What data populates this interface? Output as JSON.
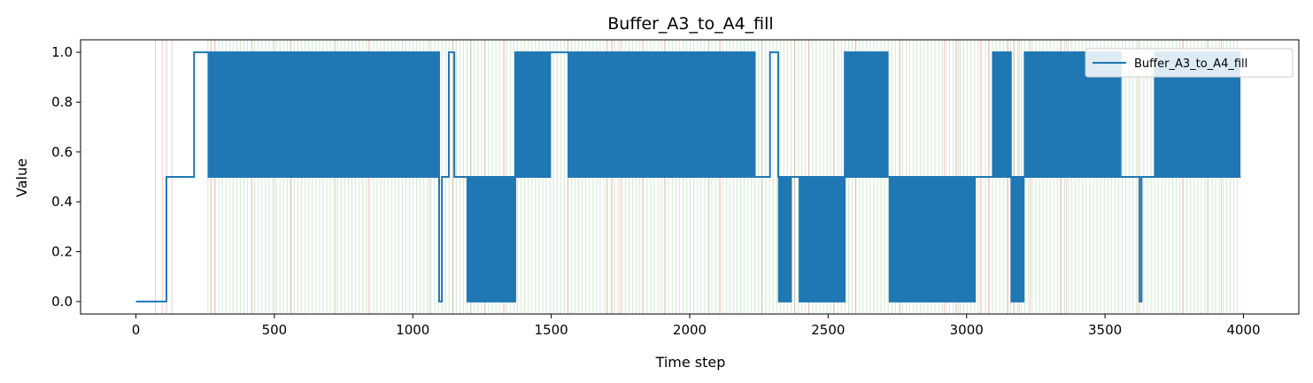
{
  "chart_data": {
    "type": "line",
    "title": "Buffer_A3_to_A4_fill",
    "xlabel": "Time step",
    "ylabel": "Value",
    "xlim": [
      -200,
      4200
    ],
    "ylim": [
      -0.05,
      1.05
    ],
    "x_ticks": [
      0,
      500,
      1000,
      1500,
      2000,
      2500,
      3000,
      3500,
      4000
    ],
    "y_ticks": [
      0.0,
      0.2,
      0.4,
      0.6,
      0.8,
      1.0
    ],
    "x_tick_labels": [
      "0",
      "500",
      "1000",
      "1500",
      "2000",
      "2500",
      "3000",
      "3500",
      "4000"
    ],
    "y_tick_labels": [
      "0.0",
      "0.2",
      "0.4",
      "0.6",
      "0.8",
      "1.0"
    ],
    "grid": false,
    "legend_position": "top-right",
    "series": [
      {
        "name": "Buffer_A3_to_A4_fill",
        "color": "#1f77b4",
        "step": true,
        "segments": [
          {
            "x": [
              0,
              110
            ],
            "y": 0.0
          },
          {
            "x": [
              110,
              210
            ],
            "y": 0.5
          },
          {
            "x": [
              210,
              260
            ],
            "y": 1.0
          },
          {
            "x": [
              260,
              1095
            ],
            "y": "oscillate",
            "levels": [
              0.5,
              1.0
            ]
          },
          {
            "x": [
              1095,
              1105
            ],
            "y": 0.0
          },
          {
            "x": [
              1105,
              1130
            ],
            "y": 0.5
          },
          {
            "x": [
              1130,
              1150
            ],
            "y": 1.0
          },
          {
            "x": [
              1150,
              1195
            ],
            "y": 0.5
          },
          {
            "x": [
              1195,
              1370
            ],
            "y": "oscillate",
            "levels": [
              0.0,
              0.5
            ]
          },
          {
            "x": [
              1370,
              1500
            ],
            "y": "oscillate",
            "levels": [
              0.5,
              1.0
            ]
          },
          {
            "x": [
              1500,
              1560
            ],
            "y": 1.0
          },
          {
            "x": [
              1560,
              2240
            ],
            "y": "oscillate",
            "levels": [
              0.5,
              1.0
            ]
          },
          {
            "x": [
              2240,
              2290
            ],
            "y": 0.5
          },
          {
            "x": [
              2290,
              2320
            ],
            "y": 1.0
          },
          {
            "x": [
              2320,
              2370
            ],
            "y": "oscillate",
            "levels": [
              0.0,
              0.5
            ]
          },
          {
            "x": [
              2370,
              2395
            ],
            "y": 0.5
          },
          {
            "x": [
              2395,
              2560
            ],
            "y": "oscillate",
            "levels": [
              0.0,
              0.5
            ]
          },
          {
            "x": [
              2560,
              2720
            ],
            "y": "oscillate",
            "levels": [
              0.5,
              1.0
            ]
          },
          {
            "x": [
              2720,
              3030
            ],
            "y": "oscillate",
            "levels": [
              0.0,
              0.5
            ]
          },
          {
            "x": [
              3030,
              3095
            ],
            "y": 0.5
          },
          {
            "x": [
              3095,
              3160
            ],
            "y": "oscillate",
            "levels": [
              0.5,
              1.0
            ]
          },
          {
            "x": [
              3160,
              3210
            ],
            "y": "oscillate",
            "levels": [
              0.0,
              0.5
            ]
          },
          {
            "x": [
              3210,
              3560
            ],
            "y": "oscillate",
            "levels": [
              0.5,
              1.0
            ]
          },
          {
            "x": [
              3560,
              3625
            ],
            "y": 0.5
          },
          {
            "x": [
              3625,
              3632
            ],
            "y": 0.0
          },
          {
            "x": [
              3632,
              3680
            ],
            "y": 0.5
          },
          {
            "x": [
              3680,
              3990
            ],
            "y": "oscillate",
            "levels": [
              0.5,
              1.0
            ]
          }
        ]
      }
    ],
    "event_lines": {
      "red": {
        "color": "#d62728",
        "x": [
          70,
          95,
          110,
          130,
          270,
          285,
          420,
          500,
          560,
          720,
          840,
          1060,
          1145,
          1210,
          1260,
          1330,
          1560,
          1700,
          1720,
          1750,
          1830,
          1910,
          2070,
          2110,
          2260,
          2380,
          2430,
          2520,
          2600,
          2760,
          2920,
          2960,
          2970,
          3050,
          3080,
          3150,
          3170,
          3190,
          3230,
          3340,
          3360,
          3620,
          3780,
          3870,
          3920
        ]
      },
      "green": {
        "color": "#2ca02c",
        "range": [
          260,
          3990
        ],
        "spacing": 13
      }
    }
  }
}
